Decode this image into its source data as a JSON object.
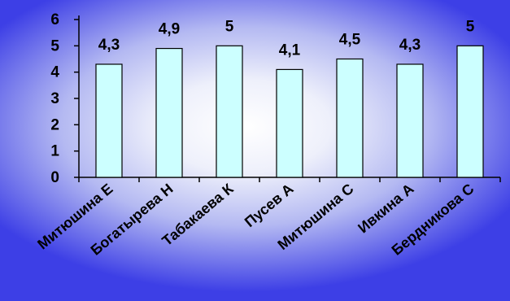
{
  "chart_data": {
    "type": "bar",
    "categories": [
      "Митюшина Е",
      "Богатырева Н",
      "Табакаева К",
      "Пусев А",
      "Митюшина С",
      "Ивкина А",
      "Бердникова С"
    ],
    "values": [
      4.3,
      4.9,
      5,
      4.1,
      4.5,
      4.3,
      5
    ],
    "value_labels": [
      "4,3",
      "4,9",
      "5",
      "4,1",
      "4,5",
      "4,3",
      "5"
    ],
    "ylim": [
      0,
      6
    ],
    "yticks": [
      0,
      1,
      2,
      3,
      4,
      5,
      6
    ],
    "grid": false,
    "legend": "none",
    "colors": {
      "bar_fill": "#ccffff",
      "bar_stroke": "#000000",
      "axis": "#000000",
      "background_center": "#ffffff",
      "background_edge": "#3d3fe6"
    }
  }
}
